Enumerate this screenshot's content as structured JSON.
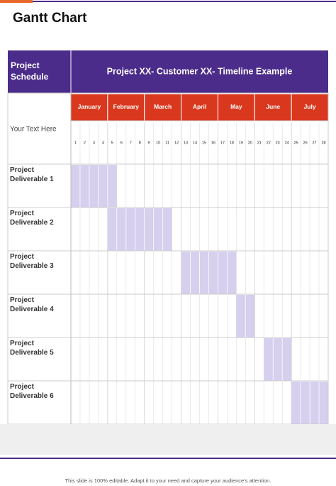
{
  "header": {
    "title": "Gantt Chart"
  },
  "table": {
    "corner": "Project Schedule",
    "heading": "Project XX- Customer XX- Timeline Example",
    "side_note": "Your Text Here",
    "months": [
      "January",
      "February",
      "March",
      "April",
      "May",
      "June",
      "July"
    ],
    "weeks": [
      1,
      2,
      3,
      4,
      5,
      6,
      7,
      8,
      9,
      10,
      11,
      12,
      13,
      14,
      15,
      16,
      17,
      18,
      19,
      20,
      21,
      22,
      23,
      24,
      25,
      26,
      27,
      28
    ],
    "rows": [
      {
        "label": "Project Deliverable 1",
        "start": 1,
        "end": 5
      },
      {
        "label": "Project Deliverable 2",
        "start": 5,
        "end": 11
      },
      {
        "label": "Project Deliverable 3",
        "start": 13,
        "end": 18
      },
      {
        "label": "Project Deliverable 4",
        "start": 19,
        "end": 20
      },
      {
        "label": "Project Deliverable 5",
        "start": 22,
        "end": 24
      },
      {
        "label": "Project Deliverable 6",
        "start": 25,
        "end": 28
      }
    ]
  },
  "footer": {
    "note": "This slide is 100% editable. Adapt it to your need and capture your audience’s attention."
  }
}
